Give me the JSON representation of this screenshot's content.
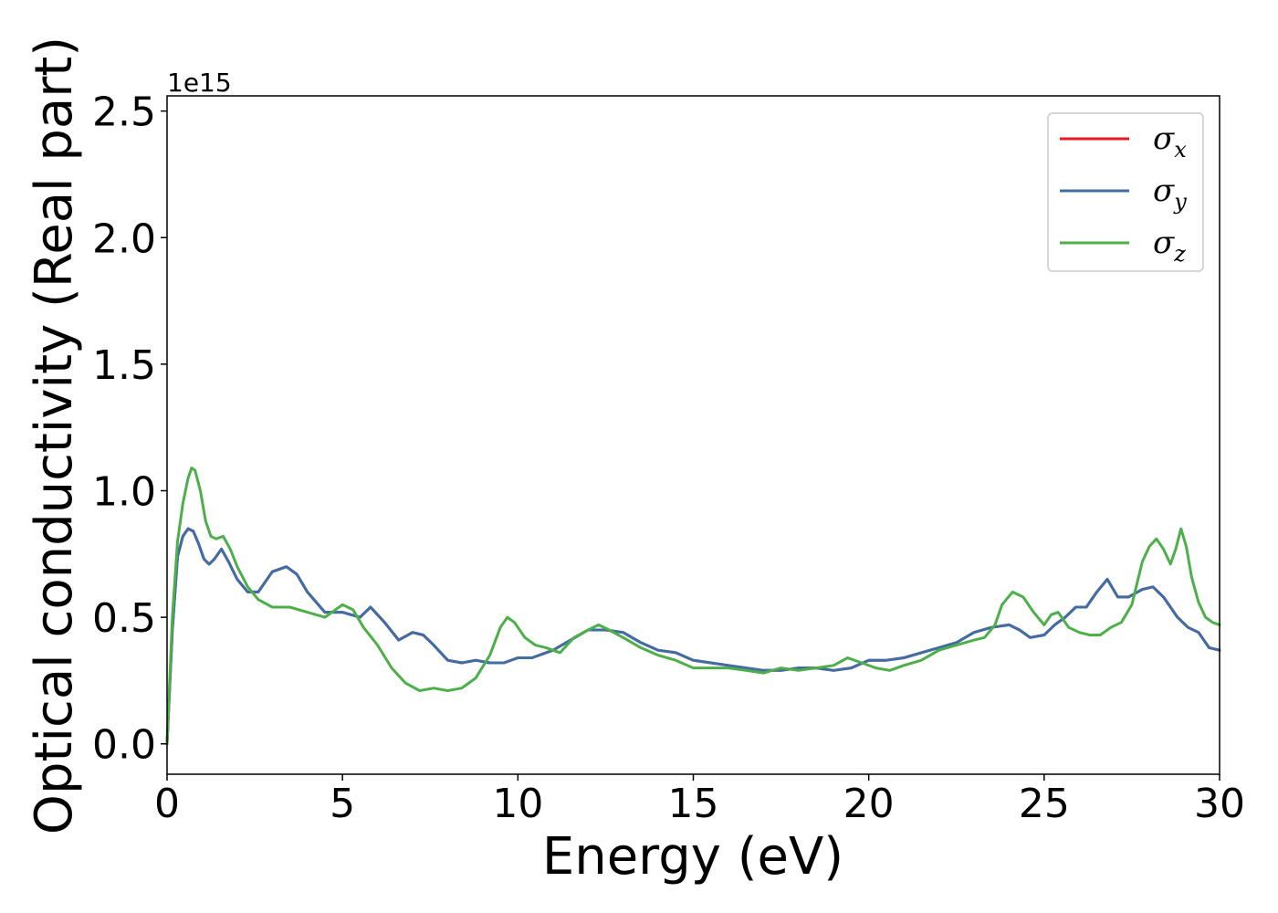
{
  "chart_data": {
    "type": "line",
    "xlabel": "Energy (eV)",
    "ylabel": "Optical conductivity (Real part)",
    "y_offset_label": "1e15",
    "xlim": [
      0,
      30
    ],
    "ylim": [
      -0.12,
      2.56
    ],
    "xticks": [
      0,
      5,
      10,
      15,
      20,
      25,
      30
    ],
    "xtick_labels": [
      "0",
      "5",
      "10",
      "15",
      "20",
      "25",
      "30"
    ],
    "yticks": [
      0.0,
      0.5,
      1.0,
      1.5,
      2.0,
      2.5
    ],
    "ytick_labels": [
      "0.0",
      "0.5",
      "1.0",
      "1.5",
      "2.0",
      "2.5"
    ],
    "grid": false,
    "legend_position": "top-right",
    "series": [
      {
        "name": "σx",
        "symbol": "σ",
        "subscript": "x",
        "color": "#e41a1c",
        "x": [
          0,
          0.15,
          0.3,
          0.45,
          0.6,
          0.75,
          0.9,
          1.05,
          1.2,
          1.35,
          1.55,
          1.75,
          2.0,
          2.3,
          2.6,
          3.0,
          3.4,
          3.7,
          4.0,
          4.5,
          5.0,
          5.5,
          5.8,
          6.2,
          6.6,
          7.0,
          7.3,
          7.6,
          8.0,
          8.4,
          8.8,
          9.2,
          9.6,
          10.0,
          10.4,
          11.0,
          11.5,
          12.0,
          12.5,
          13.0,
          13.5,
          14.0,
          14.5,
          15.0,
          15.5,
          16.0,
          16.5,
          17.0,
          17.5,
          18.0,
          18.5,
          19.0,
          19.5,
          20.0,
          20.5,
          21.0,
          21.5,
          22.0,
          22.5,
          23.0,
          23.5,
          24.0,
          24.3,
          24.6,
          25.0,
          25.3,
          25.6,
          25.9,
          26.2,
          26.5,
          26.8,
          27.1,
          27.4,
          27.8,
          28.1,
          28.4,
          28.8,
          29.1,
          29.4,
          29.7,
          30.0
        ],
        "y": [
          0.0,
          0.45,
          0.74,
          0.82,
          0.85,
          0.84,
          0.79,
          0.73,
          0.71,
          0.73,
          0.77,
          0.72,
          0.65,
          0.6,
          0.6,
          0.68,
          0.7,
          0.67,
          0.6,
          0.52,
          0.52,
          0.5,
          0.54,
          0.48,
          0.41,
          0.44,
          0.43,
          0.39,
          0.33,
          0.32,
          0.33,
          0.32,
          0.32,
          0.34,
          0.34,
          0.37,
          0.41,
          0.45,
          0.45,
          0.44,
          0.4,
          0.37,
          0.36,
          0.33,
          0.32,
          0.31,
          0.3,
          0.29,
          0.29,
          0.3,
          0.3,
          0.29,
          0.3,
          0.33,
          0.33,
          0.34,
          0.36,
          0.38,
          0.4,
          0.44,
          0.46,
          0.47,
          0.45,
          0.42,
          0.43,
          0.47,
          0.5,
          0.54,
          0.54,
          0.6,
          0.65,
          0.58,
          0.58,
          0.61,
          0.62,
          0.58,
          0.5,
          0.46,
          0.44,
          0.38,
          0.37
        ]
      },
      {
        "name": "σy",
        "symbol": "σ",
        "subscript": "y",
        "color": "#3e6ea6",
        "x": [
          0,
          0.15,
          0.3,
          0.45,
          0.6,
          0.75,
          0.9,
          1.05,
          1.2,
          1.35,
          1.55,
          1.75,
          2.0,
          2.3,
          2.6,
          3.0,
          3.4,
          3.7,
          4.0,
          4.5,
          5.0,
          5.5,
          5.8,
          6.2,
          6.6,
          7.0,
          7.3,
          7.6,
          8.0,
          8.4,
          8.8,
          9.2,
          9.6,
          10.0,
          10.4,
          11.0,
          11.5,
          12.0,
          12.5,
          13.0,
          13.5,
          14.0,
          14.5,
          15.0,
          15.5,
          16.0,
          16.5,
          17.0,
          17.5,
          18.0,
          18.5,
          19.0,
          19.5,
          20.0,
          20.5,
          21.0,
          21.5,
          22.0,
          22.5,
          23.0,
          23.5,
          24.0,
          24.3,
          24.6,
          25.0,
          25.3,
          25.6,
          25.9,
          26.2,
          26.5,
          26.8,
          27.1,
          27.4,
          27.8,
          28.1,
          28.4,
          28.8,
          29.1,
          29.4,
          29.7,
          30.0
        ],
        "y": [
          0.0,
          0.45,
          0.74,
          0.82,
          0.85,
          0.84,
          0.79,
          0.73,
          0.71,
          0.73,
          0.77,
          0.72,
          0.65,
          0.6,
          0.6,
          0.68,
          0.7,
          0.67,
          0.6,
          0.52,
          0.52,
          0.5,
          0.54,
          0.48,
          0.41,
          0.44,
          0.43,
          0.39,
          0.33,
          0.32,
          0.33,
          0.32,
          0.32,
          0.34,
          0.34,
          0.37,
          0.41,
          0.45,
          0.45,
          0.44,
          0.4,
          0.37,
          0.36,
          0.33,
          0.32,
          0.31,
          0.3,
          0.29,
          0.29,
          0.3,
          0.3,
          0.29,
          0.3,
          0.33,
          0.33,
          0.34,
          0.36,
          0.38,
          0.4,
          0.44,
          0.46,
          0.47,
          0.45,
          0.42,
          0.43,
          0.47,
          0.5,
          0.54,
          0.54,
          0.6,
          0.65,
          0.58,
          0.58,
          0.61,
          0.62,
          0.58,
          0.5,
          0.46,
          0.44,
          0.38,
          0.37
        ]
      },
      {
        "name": "σz",
        "symbol": "σ",
        "subscript": "z",
        "color": "#4daf4a",
        "x": [
          0,
          0.15,
          0.3,
          0.45,
          0.6,
          0.7,
          0.8,
          0.95,
          1.1,
          1.25,
          1.4,
          1.6,
          1.8,
          2.0,
          2.3,
          2.6,
          3.0,
          3.5,
          4.0,
          4.5,
          5.0,
          5.3,
          5.6,
          6.0,
          6.4,
          6.8,
          7.2,
          7.6,
          8.0,
          8.4,
          8.8,
          9.2,
          9.5,
          9.7,
          9.9,
          10.2,
          10.5,
          10.8,
          11.2,
          11.6,
          12.0,
          12.3,
          12.6,
          13.0,
          13.5,
          14.0,
          14.5,
          15.0,
          15.5,
          16.0,
          16.5,
          17.0,
          17.5,
          18.0,
          18.5,
          19.0,
          19.4,
          19.8,
          20.2,
          20.6,
          21.0,
          21.5,
          22.0,
          22.5,
          23.0,
          23.3,
          23.6,
          23.8,
          24.1,
          24.4,
          24.7,
          25.0,
          25.2,
          25.4,
          25.7,
          26.0,
          26.3,
          26.6,
          26.9,
          27.2,
          27.5,
          27.8,
          28.0,
          28.2,
          28.4,
          28.6,
          28.75,
          28.9,
          29.05,
          29.2,
          29.4,
          29.6,
          29.8,
          30.0
        ],
        "y": [
          0.0,
          0.5,
          0.8,
          0.95,
          1.05,
          1.09,
          1.08,
          1.0,
          0.88,
          0.82,
          0.81,
          0.82,
          0.77,
          0.7,
          0.62,
          0.57,
          0.54,
          0.54,
          0.52,
          0.5,
          0.55,
          0.53,
          0.46,
          0.39,
          0.3,
          0.24,
          0.21,
          0.22,
          0.21,
          0.22,
          0.26,
          0.35,
          0.46,
          0.5,
          0.48,
          0.42,
          0.39,
          0.38,
          0.36,
          0.42,
          0.45,
          0.47,
          0.45,
          0.42,
          0.38,
          0.35,
          0.33,
          0.3,
          0.3,
          0.3,
          0.29,
          0.28,
          0.3,
          0.29,
          0.3,
          0.31,
          0.34,
          0.32,
          0.3,
          0.29,
          0.31,
          0.33,
          0.37,
          0.39,
          0.41,
          0.42,
          0.47,
          0.55,
          0.6,
          0.58,
          0.52,
          0.47,
          0.51,
          0.52,
          0.46,
          0.44,
          0.43,
          0.43,
          0.46,
          0.48,
          0.55,
          0.72,
          0.78,
          0.81,
          0.77,
          0.71,
          0.77,
          0.85,
          0.78,
          0.66,
          0.56,
          0.5,
          0.48,
          0.47
        ]
      }
    ]
  }
}
